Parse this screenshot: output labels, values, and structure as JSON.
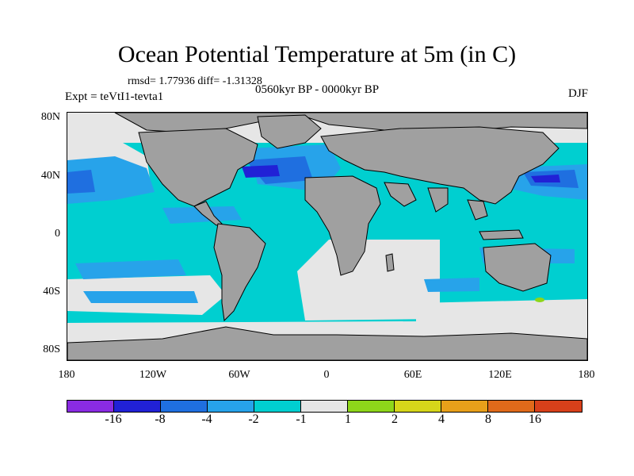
{
  "title": "Ocean Potential Temperature at 5m (in C)",
  "stats": "rmsd= 1.77936 diff= -1.31328",
  "experiment": "Expt = teVtI1-tevta1",
  "period": "0560kyr BP - 0000kyr BP",
  "season": "DJF",
  "lat_labels": [
    "80N",
    "40N",
    "0",
    "40S",
    "80S"
  ],
  "lon_labels": [
    "180",
    "120W",
    "60W",
    "0",
    "60E",
    "120E",
    "180"
  ],
  "colorbar": {
    "colors": [
      "#8a2be2",
      "#2121d6",
      "#1f6fe0",
      "#27a3ea",
      "#00cfd0",
      "#e6e6e6",
      "#8ed61a",
      "#d6d61a",
      "#e8a01a",
      "#e06a1a",
      "#d8401a"
    ],
    "labels": [
      "-16",
      "-8",
      "-4",
      "-2",
      "-1",
      "1",
      "2",
      "4",
      "8",
      "16"
    ]
  },
  "map_colors": {
    "ocean_base": "#00cfd0",
    "land": "#a0a0a0",
    "neutral": "#e6e6e6",
    "blue_light": "#27a3ea",
    "blue_mid": "#1f6fe0",
    "blue_dark": "#2121d6",
    "green": "#8ed61a"
  }
}
